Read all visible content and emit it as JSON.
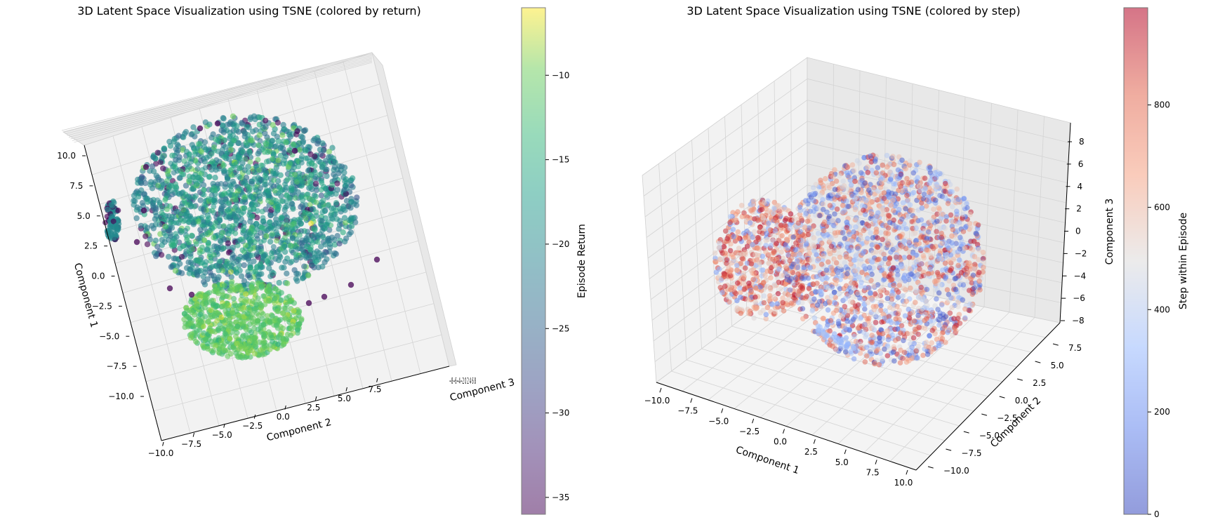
{
  "charts": [
    {
      "title": "3D Latent Space Visualization using TSNE (colored by return)",
      "axis_labels": {
        "x": "Component 1",
        "y": "Component 2",
        "z": "Component 3"
      },
      "x_ticks": [
        "−10.0",
        "−7.5",
        "−5.0",
        "−2.5",
        "0.0",
        "2.5",
        "5.0",
        "7.5",
        "10.0"
      ],
      "y_ticks": [
        "−10.0",
        "−7.5",
        "−5.0",
        "−2.5",
        "0.0",
        "2.5",
        "5.0",
        "7.5"
      ],
      "z_ticks_overlapping": "−8−6−4−2 0 2 4 6 8",
      "colorbar": {
        "label": "Episode Return",
        "colormap": "viridis",
        "ticks": [
          "−10",
          "−15",
          "−20",
          "−25",
          "−30",
          "−35"
        ]
      }
    },
    {
      "title": "3D Latent Space Visualization using TSNE (colored by step)",
      "axis_labels": {
        "x": "Component 1",
        "y": "Component 2",
        "z": "Component 3"
      },
      "x_ticks": [
        "−10.0",
        "−7.5",
        "−5.0",
        "−2.5",
        "0.0",
        "2.5",
        "5.0",
        "7.5",
        "10.0"
      ],
      "y_ticks": [
        "−10.0",
        "−7.5",
        "−5.0",
        "−2.5",
        "0.0",
        "2.5",
        "5.0",
        "7.5"
      ],
      "z_ticks": [
        "−8",
        "−6",
        "−4",
        "−2",
        "0",
        "2",
        "4",
        "6",
        "8"
      ],
      "colorbar": {
        "label": "Step within Episode",
        "colormap": "coolwarm",
        "ticks": [
          "0",
          "200",
          "400",
          "600",
          "800"
        ]
      }
    }
  ],
  "chart_data": [
    {
      "type": "scatter",
      "projection": "3d",
      "title": "3D Latent Space Visualization using TSNE (colored by return)",
      "xlabel": "Component 1",
      "ylabel": "Component 2",
      "zlabel": "Component 3",
      "xlim": [
        -11,
        11
      ],
      "ylim": [
        -11,
        9
      ],
      "zlim": [
        -9,
        9
      ],
      "color_variable": "Episode Return",
      "color_range": [
        -36,
        -6
      ],
      "colormap": "viridis",
      "alpha": 0.5,
      "clusters": [
        {
          "center": [
            4.0,
            -0.5,
            0.0
          ],
          "spread": [
            5.5,
            5.5,
            5.0
          ],
          "color_value_typical": -17
        },
        {
          "center": [
            -6.0,
            -2.5,
            0.0
          ],
          "spread": [
            2.6,
            2.6,
            2.5
          ],
          "color_value_typical": -11
        },
        {
          "center": [
            4.5,
            -9.5,
            0.0
          ],
          "spread": [
            1.4,
            0.5,
            1.0
          ],
          "color_value_typical": -20
        }
      ]
    },
    {
      "type": "scatter",
      "projection": "3d",
      "title": "3D Latent Space Visualization using TSNE (colored by step)",
      "xlabel": "Component 1",
      "ylabel": "Component 2",
      "zlabel": "Component 3",
      "xlim": [
        -11,
        11
      ],
      "ylim": [
        -11,
        9
      ],
      "zlim": [
        -9,
        9
      ],
      "color_variable": "Step within Episode",
      "color_range": [
        0,
        990
      ],
      "colormap": "coolwarm",
      "alpha": 0.5,
      "clusters": [
        {
          "center": [
            1.5,
            2.0,
            0.0
          ],
          "spread": [
            6.0,
            6.0,
            6.0
          ],
          "step_values": "mixed 0–990"
        },
        {
          "center": [
            -7.0,
            -2.0,
            0.0
          ],
          "spread": [
            3.0,
            3.0,
            3.0
          ],
          "step_values": "mostly 500–990"
        }
      ]
    }
  ]
}
